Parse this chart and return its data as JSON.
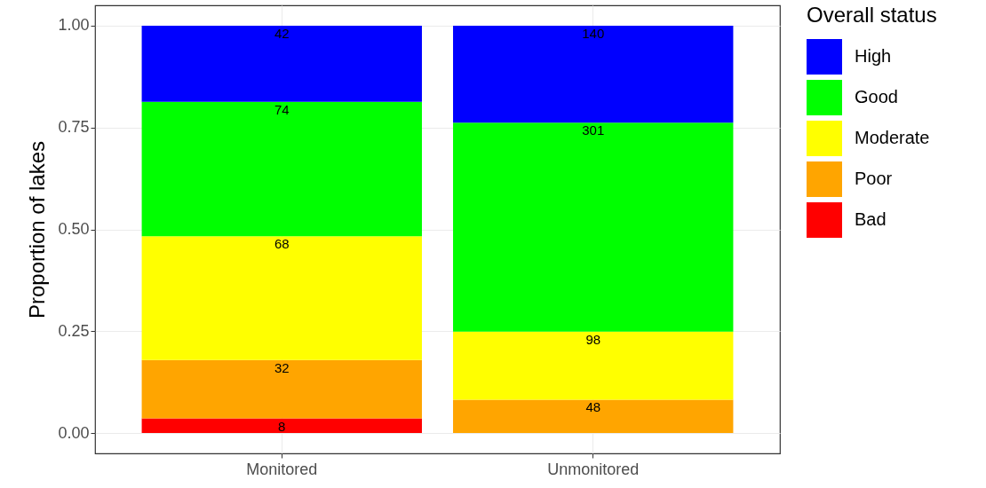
{
  "chart_data": {
    "type": "bar",
    "stacked": true,
    "ylabel": "Proportion of lakes",
    "legend_title": "Overall status",
    "legend": "right",
    "grid": true,
    "categories": [
      "Monitored",
      "Unmonitored"
    ],
    "ylim": [
      -0.05,
      1.05
    ],
    "yticks": [
      {
        "value": 0,
        "label": "0.00"
      },
      {
        "value": 0.25,
        "label": "0.25"
      },
      {
        "value": 0.5,
        "label": "0.50"
      },
      {
        "value": 0.75,
        "label": "0.75"
      },
      {
        "value": 1,
        "label": "1.00"
      }
    ],
    "series": [
      {
        "name": "Bad",
        "color": "#ff0000",
        "values": [
          0.036,
          null
        ]
      },
      {
        "name": "Poor",
        "color": "#ffa500",
        "values": [
          0.143,
          0.082
        ]
      },
      {
        "name": "Moderate",
        "color": "#ffff00",
        "values": [
          0.304,
          0.167
        ]
      },
      {
        "name": "Good",
        "color": "#00ff00",
        "values": [
          0.33,
          0.513
        ]
      },
      {
        "name": "High",
        "color": "#0000ff",
        "values": [
          0.187,
          0.238
        ]
      }
    ],
    "annotations": [
      {
        "text": "8",
        "x": "Monitored",
        "y": 0.036
      },
      {
        "text": "32",
        "x": "Monitored",
        "y": 0.179
      },
      {
        "text": "68",
        "x": "Monitored",
        "y": 0.483
      },
      {
        "text": "74",
        "x": "Monitored",
        "y": 0.813
      },
      {
        "text": "42",
        "x": "Monitored",
        "y": 1.0
      },
      {
        "text": "48",
        "x": "Unmonitored",
        "y": 0.082
      },
      {
        "text": "98",
        "x": "Unmonitored",
        "y": 0.249
      },
      {
        "text": "301",
        "x": "Unmonitored",
        "y": 0.762
      },
      {
        "text": "140",
        "x": "Unmonitored",
        "y": 1.0
      }
    ]
  }
}
